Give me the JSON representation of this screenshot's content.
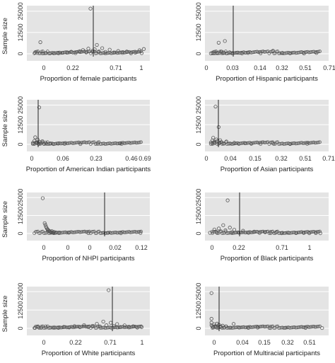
{
  "chart_data": [
    {
      "type": "scatter",
      "xlabel": "Proportion of female participants",
      "ylabel": "Sample size",
      "x_ticks": [
        "0",
        "0.22",
        "0.71",
        "1"
      ],
      "y_ticks": [
        "0",
        "12500",
        "25000"
      ],
      "ylim": [
        0,
        27000
      ],
      "vline_x": "0.5",
      "points": [
        {
          "x": 0.0,
          "y": 700
        },
        {
          "x": 0.02,
          "y": 500
        },
        {
          "x": 0.05,
          "y": 6800
        },
        {
          "x": 0.07,
          "y": 300
        },
        {
          "x": 0.1,
          "y": 400
        },
        {
          "x": 0.14,
          "y": 250
        },
        {
          "x": 0.18,
          "y": 450
        },
        {
          "x": 0.22,
          "y": 300
        },
        {
          "x": 0.26,
          "y": 600
        },
        {
          "x": 0.3,
          "y": 900
        },
        {
          "x": 0.34,
          "y": 1200
        },
        {
          "x": 0.38,
          "y": 400
        },
        {
          "x": 0.42,
          "y": 1500
        },
        {
          "x": 0.45,
          "y": 2200
        },
        {
          "x": 0.48,
          "y": 800
        },
        {
          "x": 0.5,
          "y": 3000
        },
        {
          "x": 0.52,
          "y": 26500
        },
        {
          "x": 0.54,
          "y": 1800
        },
        {
          "x": 0.56,
          "y": 2600
        },
        {
          "x": 0.58,
          "y": 5200
        },
        {
          "x": 0.6,
          "y": 900
        },
        {
          "x": 0.63,
          "y": 3300
        },
        {
          "x": 0.66,
          "y": 1100
        },
        {
          "x": 0.7,
          "y": 2400
        },
        {
          "x": 0.74,
          "y": 800
        },
        {
          "x": 0.78,
          "y": 1600
        },
        {
          "x": 0.82,
          "y": 500
        },
        {
          "x": 0.86,
          "y": 1300
        },
        {
          "x": 0.9,
          "y": 300
        },
        {
          "x": 0.94,
          "y": 700
        },
        {
          "x": 0.98,
          "y": 2100
        },
        {
          "x": 1.0,
          "y": 400
        },
        {
          "x": 1.02,
          "y": 2800
        }
      ]
    },
    {
      "type": "scatter",
      "xlabel": "Proportion of Hispanic participants",
      "ylabel": "",
      "x_ticks": [
        "0",
        "0.03",
        "0.14",
        "0.32",
        "0.51",
        "0.71"
      ],
      "y_ticks": [
        "0",
        "12500",
        "25000"
      ],
      "ylim": [
        0,
        27000
      ],
      "vline_x": "0.07",
      "points": [
        {
          "x": 0.0,
          "y": 200
        },
        {
          "x": 0.01,
          "y": 600
        },
        {
          "x": 0.02,
          "y": 300
        },
        {
          "x": 0.03,
          "y": 400
        },
        {
          "x": 0.04,
          "y": 700
        },
        {
          "x": 0.05,
          "y": 6500
        },
        {
          "x": 0.06,
          "y": 500
        },
        {
          "x": 0.07,
          "y": 1200
        },
        {
          "x": 0.08,
          "y": 800
        },
        {
          "x": 0.09,
          "y": 7500
        },
        {
          "x": 0.1,
          "y": 300
        },
        {
          "x": 0.12,
          "y": 900
        },
        {
          "x": 0.14,
          "y": 400
        },
        {
          "x": 0.17,
          "y": 600
        },
        {
          "x": 0.2,
          "y": 200
        },
        {
          "x": 0.24,
          "y": 500
        },
        {
          "x": 0.32,
          "y": 300
        },
        {
          "x": 0.4,
          "y": 1800
        },
        {
          "x": 0.46,
          "y": 400
        },
        {
          "x": 0.51,
          "y": 300
        },
        {
          "x": 0.6,
          "y": 200
        },
        {
          "x": 0.68,
          "y": 500
        }
      ]
    },
    {
      "type": "scatter",
      "xlabel": "Proportion of American Indian participants",
      "ylabel": "Sample size",
      "x_ticks": [
        "0",
        "0.06",
        "0.23",
        "0.46",
        "0.69"
      ],
      "y_ticks": [
        "0",
        "12500",
        "25000"
      ],
      "ylim": [
        0,
        27000
      ],
      "vline_x": "0.02",
      "points": [
        {
          "x": 0.0,
          "y": 300
        },
        {
          "x": 0.0,
          "y": 900
        },
        {
          "x": 0.01,
          "y": 2200
        },
        {
          "x": 0.01,
          "y": 500
        },
        {
          "x": 0.015,
          "y": 4500
        },
        {
          "x": 0.02,
          "y": 1200
        },
        {
          "x": 0.025,
          "y": 700
        },
        {
          "x": 0.03,
          "y": 3000
        },
        {
          "x": 0.035,
          "y": 400
        },
        {
          "x": 0.04,
          "y": 23500
        },
        {
          "x": 0.045,
          "y": 1500
        },
        {
          "x": 0.05,
          "y": 600
        },
        {
          "x": 0.06,
          "y": 2000
        },
        {
          "x": 0.07,
          "y": 400
        },
        {
          "x": 0.08,
          "y": 1100
        },
        {
          "x": 0.09,
          "y": 300
        },
        {
          "x": 0.11,
          "y": 700
        },
        {
          "x": 0.13,
          "y": 200
        },
        {
          "x": 0.16,
          "y": 500
        },
        {
          "x": 0.2,
          "y": 300
        },
        {
          "x": 0.3,
          "y": 200
        },
        {
          "x": 0.41,
          "y": 400
        },
        {
          "x": 0.55,
          "y": 600
        },
        {
          "x": 0.56,
          "y": 300
        }
      ]
    },
    {
      "type": "scatter",
      "xlabel": "Proportion of Asian participants",
      "ylabel": "",
      "x_ticks": [
        "0",
        "0.04",
        "0.15",
        "0.32",
        "0.51",
        "0.71"
      ],
      "y_ticks": [
        "0",
        "12500",
        "25000"
      ],
      "ylim": [
        0,
        27000
      ],
      "vline_x": "0.03",
      "points": [
        {
          "x": 0.0,
          "y": 300
        },
        {
          "x": 0.0,
          "y": 1200
        },
        {
          "x": 0.01,
          "y": 2500
        },
        {
          "x": 0.01,
          "y": 700
        },
        {
          "x": 0.015,
          "y": 4200
        },
        {
          "x": 0.02,
          "y": 1500
        },
        {
          "x": 0.025,
          "y": 800
        },
        {
          "x": 0.03,
          "y": 24000
        },
        {
          "x": 0.035,
          "y": 3100
        },
        {
          "x": 0.04,
          "y": 2000
        },
        {
          "x": 0.05,
          "y": 11000
        },
        {
          "x": 0.055,
          "y": 900
        },
        {
          "x": 0.06,
          "y": 2600
        },
        {
          "x": 0.07,
          "y": 1300
        },
        {
          "x": 0.08,
          "y": 600
        },
        {
          "x": 0.1,
          "y": 1800
        },
        {
          "x": 0.12,
          "y": 500
        },
        {
          "x": 0.15,
          "y": 1000
        },
        {
          "x": 0.18,
          "y": 300
        },
        {
          "x": 0.22,
          "y": 800
        },
        {
          "x": 0.26,
          "y": 400
        },
        {
          "x": 0.32,
          "y": 300
        },
        {
          "x": 0.4,
          "y": 600
        },
        {
          "x": 0.51,
          "y": 200
        },
        {
          "x": 0.62,
          "y": 400
        }
      ]
    },
    {
      "type": "scatter",
      "xlabel": "Proportion of NHPI participants",
      "ylabel": "Sample size",
      "x_ticks": [
        "0",
        "0",
        "0",
        "0.02",
        "0.12"
      ],
      "y_ticks": [
        "0",
        "12500",
        "25000"
      ],
      "ylim": [
        0,
        27000
      ],
      "vline_x": "0.01",
      "points": [
        {
          "x": 0.0,
          "y": 24500
        },
        {
          "x": 0.003,
          "y": 7200
        },
        {
          "x": 0.004,
          "y": 6000
        },
        {
          "x": 0.005,
          "y": 4800
        },
        {
          "x": 0.006,
          "y": 3900
        },
        {
          "x": 0.007,
          "y": 3000
        },
        {
          "x": 0.008,
          "y": 2600
        },
        {
          "x": 0.009,
          "y": 2100
        },
        {
          "x": 0.01,
          "y": 1800
        },
        {
          "x": 0.011,
          "y": 1400
        },
        {
          "x": 0.012,
          "y": 1200
        },
        {
          "x": 0.013,
          "y": 900
        },
        {
          "x": 0.014,
          "y": 1600
        },
        {
          "x": 0.015,
          "y": 700
        },
        {
          "x": 0.016,
          "y": 500
        },
        {
          "x": 0.017,
          "y": 1100
        },
        {
          "x": 0.018,
          "y": 400
        },
        {
          "x": 0.02,
          "y": 800
        },
        {
          "x": 0.025,
          "y": 300
        },
        {
          "x": 0.04,
          "y": 600
        },
        {
          "x": 0.07,
          "y": 300
        },
        {
          "x": 0.1,
          "y": 500
        },
        {
          "x": 0.12,
          "y": 200
        },
        {
          "x": 0.15,
          "y": 400
        }
      ]
    },
    {
      "type": "scatter",
      "xlabel": "Proportion of Black participants",
      "ylabel": "",
      "x_ticks": [
        "0",
        "0.22",
        "0.71",
        "1"
      ],
      "y_ticks": [
        "0",
        "12500",
        "25000"
      ],
      "ylim": [
        0,
        27000
      ],
      "vline_x": "0.14",
      "points": [
        {
          "x": 0.0,
          "y": 500
        },
        {
          "x": 0.02,
          "y": 1200
        },
        {
          "x": 0.04,
          "y": 2800
        },
        {
          "x": 0.06,
          "y": 800
        },
        {
          "x": 0.08,
          "y": 3500
        },
        {
          "x": 0.1,
          "y": 1500
        },
        {
          "x": 0.12,
          "y": 5800
        },
        {
          "x": 0.14,
          "y": 2200
        },
        {
          "x": 0.16,
          "y": 23000
        },
        {
          "x": 0.18,
          "y": 4100
        },
        {
          "x": 0.2,
          "y": 1000
        },
        {
          "x": 0.22,
          "y": 2600
        },
        {
          "x": 0.26,
          "y": 700
        },
        {
          "x": 0.3,
          "y": 1900
        },
        {
          "x": 0.35,
          "y": 500
        },
        {
          "x": 0.4,
          "y": 1300
        },
        {
          "x": 0.45,
          "y": 400
        },
        {
          "x": 0.5,
          "y": 900
        },
        {
          "x": 0.55,
          "y": 300
        },
        {
          "x": 0.6,
          "y": 700
        },
        {
          "x": 0.65,
          "y": 200
        },
        {
          "x": 0.71,
          "y": 500
        },
        {
          "x": 0.78,
          "y": 300
        },
        {
          "x": 0.85,
          "y": 400
        },
        {
          "x": 0.9,
          "y": 200
        },
        {
          "x": 0.96,
          "y": 300
        },
        {
          "x": 1.0,
          "y": 200
        }
      ]
    },
    {
      "type": "scatter",
      "xlabel": "Proportion of White participants",
      "ylabel": "Sample size",
      "x_ticks": [
        "0",
        "0.22",
        "0.71",
        "1"
      ],
      "y_ticks": [
        "0",
        "12500",
        "25000"
      ],
      "ylim": [
        0,
        27000
      ],
      "vline_x": "0.7",
      "points": [
        {
          "x": 0.0,
          "y": 300
        },
        {
          "x": 0.03,
          "y": 900
        },
        {
          "x": 0.06,
          "y": 400
        },
        {
          "x": 0.1,
          "y": 1300
        },
        {
          "x": 0.14,
          "y": 500
        },
        {
          "x": 0.18,
          "y": 800
        },
        {
          "x": 0.22,
          "y": 300
        },
        {
          "x": 0.27,
          "y": 1000
        },
        {
          "x": 0.32,
          "y": 600
        },
        {
          "x": 0.37,
          "y": 1500
        },
        {
          "x": 0.42,
          "y": 800
        },
        {
          "x": 0.46,
          "y": 2200
        },
        {
          "x": 0.5,
          "y": 900
        },
        {
          "x": 0.54,
          "y": 1700
        },
        {
          "x": 0.58,
          "y": 3100
        },
        {
          "x": 0.61,
          "y": 1200
        },
        {
          "x": 0.64,
          "y": 4600
        },
        {
          "x": 0.67,
          "y": 2100
        },
        {
          "x": 0.69,
          "y": 26000
        },
        {
          "x": 0.71,
          "y": 3800
        },
        {
          "x": 0.74,
          "y": 1600
        },
        {
          "x": 0.77,
          "y": 2900
        },
        {
          "x": 0.8,
          "y": 900
        },
        {
          "x": 0.84,
          "y": 2000
        },
        {
          "x": 0.88,
          "y": 600
        },
        {
          "x": 0.92,
          "y": 1400
        },
        {
          "x": 0.96,
          "y": 500
        },
        {
          "x": 1.0,
          "y": 900
        }
      ]
    },
    {
      "type": "scatter",
      "xlabel": "Proportion of Multiracial participants",
      "ylabel": "",
      "x_ticks": [
        "0",
        "0.04",
        "0.15",
        "0.32",
        "0.51"
      ],
      "y_ticks": [
        "0",
        "12500",
        "25000"
      ],
      "ylim": [
        0,
        27000
      ],
      "vline_x": "0.02",
      "points": [
        {
          "x": 0.0,
          "y": 24000
        },
        {
          "x": 0.0,
          "y": 6500
        },
        {
          "x": 0.0,
          "y": 3800
        },
        {
          "x": 0.0,
          "y": 2200
        },
        {
          "x": 0.005,
          "y": 1200
        },
        {
          "x": 0.01,
          "y": 600
        },
        {
          "x": 0.015,
          "y": 2800
        },
        {
          "x": 0.02,
          "y": 1500
        },
        {
          "x": 0.025,
          "y": 700
        },
        {
          "x": 0.03,
          "y": 3200
        },
        {
          "x": 0.035,
          "y": 1100
        },
        {
          "x": 0.04,
          "y": 2400
        },
        {
          "x": 0.05,
          "y": 800
        },
        {
          "x": 0.06,
          "y": 1800
        },
        {
          "x": 0.07,
          "y": 500
        },
        {
          "x": 0.08,
          "y": 1300
        },
        {
          "x": 0.1,
          "y": 400
        },
        {
          "x": 0.12,
          "y": 3000
        },
        {
          "x": 0.15,
          "y": 600
        },
        {
          "x": 0.2,
          "y": 300
        },
        {
          "x": 0.25,
          "y": 500
        },
        {
          "x": 0.32,
          "y": 200
        },
        {
          "x": 0.4,
          "y": 400
        },
        {
          "x": 0.51,
          "y": 300
        },
        {
          "x": 0.6,
          "y": 200
        }
      ]
    }
  ]
}
